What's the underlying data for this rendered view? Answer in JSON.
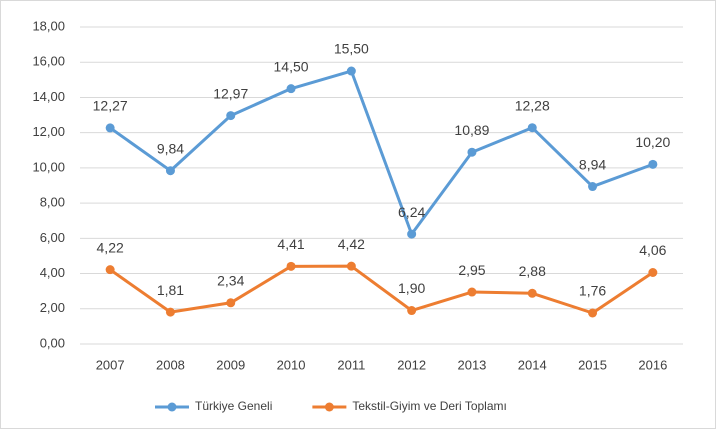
{
  "chart_data": {
    "type": "line",
    "categories": [
      "2007",
      "2008",
      "2009",
      "2010",
      "2011",
      "2012",
      "2013",
      "2014",
      "2015",
      "2016"
    ],
    "series": [
      {
        "name": "Türkiye Geneli",
        "color": "#5b9bd5",
        "values": [
          12.27,
          9.84,
          12.97,
          14.5,
          15.5,
          6.24,
          10.89,
          12.28,
          8.94,
          10.2
        ],
        "value_labels": [
          "12,27",
          "9,84",
          "12,97",
          "14,50",
          "15,50",
          "6,24",
          "10,89",
          "12,28",
          "8,94",
          "10,20"
        ]
      },
      {
        "name": "Tekstil-Giyim ve Deri Toplamı",
        "color": "#ed7d31",
        "values": [
          4.22,
          1.81,
          2.34,
          4.41,
          4.42,
          1.9,
          2.95,
          2.88,
          1.76,
          4.06
        ],
        "value_labels": [
          "4,22",
          "1,81",
          "2,34",
          "4,41",
          "4,42",
          "1,90",
          "2,95",
          "2,88",
          "1,76",
          "4,06"
        ]
      }
    ],
    "ylim": [
      0,
      18
    ],
    "yticks": [
      {
        "value": 0,
        "label": "0,00"
      },
      {
        "value": 2,
        "label": "2,00"
      },
      {
        "value": 4,
        "label": "4,00"
      },
      {
        "value": 6,
        "label": "6,00"
      },
      {
        "value": 8,
        "label": "8,00"
      },
      {
        "value": 10,
        "label": "10,00"
      },
      {
        "value": 12,
        "label": "12,00"
      },
      {
        "value": 14,
        "label": "14,00"
      },
      {
        "value": 16,
        "label": "16,00"
      },
      {
        "value": 18,
        "label": "18,00"
      }
    ],
    "grid": true,
    "legend": "bottom"
  }
}
